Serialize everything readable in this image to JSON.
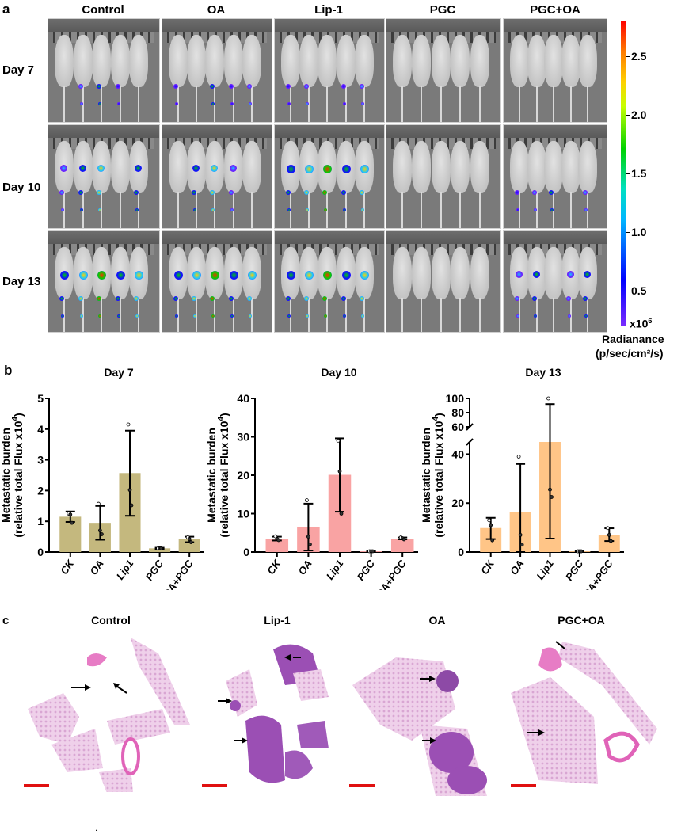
{
  "panel_a": {
    "letter": "a",
    "columns": [
      "Control",
      "OA",
      "Lip-1",
      "PGC",
      "PGC+OA"
    ],
    "rows": [
      "Day 7",
      "Day 10",
      "Day 13"
    ],
    "colorbar": {
      "ticks": [
        "2.5",
        "2.0",
        "1.5",
        "1.0",
        "0.5"
      ],
      "tick_values": [
        2.5,
        2.0,
        1.5,
        1.0,
        0.5
      ],
      "range": [
        0.2,
        2.8
      ],
      "exponent_label": "x10",
      "exponent_sup": "6",
      "unit_line1": "Radianance",
      "unit_line2": "(p/sec/cm²/s)",
      "colors": [
        "#7a2cff",
        "#0000ff",
        "#00b7ff",
        "#00d200",
        "#ffd000",
        "#ff7a00",
        "#ff0000"
      ]
    }
  },
  "panel_b": {
    "letter": "b"
  },
  "chart_data": [
    {
      "type": "bar",
      "title": "Day 7",
      "xlabel": "",
      "ylabel_line1": "Metastatic burden",
      "ylabel_line2": "(relative total Flux x10",
      "ylabel_sup": "4",
      "ylabel_close": ")",
      "categories": [
        "CK",
        "OA",
        "Lip1",
        "PGC",
        "OA+PGC"
      ],
      "values": [
        1.15,
        0.95,
        2.57,
        0.12,
        0.42
      ],
      "error_low": [
        0.98,
        0.4,
        1.18,
        0.1,
        0.32
      ],
      "error_high": [
        1.32,
        1.5,
        3.95,
        0.14,
        0.5
      ],
      "points": [
        [
          1.25,
          1.22,
          0.95
        ],
        [
          1.57,
          0.7,
          0.58
        ],
        [
          4.15,
          2.02,
          1.52
        ],
        [
          0.12,
          0.12,
          0.12
        ],
        [
          0.48,
          0.42,
          0.32
        ]
      ],
      "yticks": [
        0,
        1,
        2,
        3,
        4,
        5
      ],
      "ylim": [
        0,
        5
      ],
      "bar_color": "#c4b87e",
      "grid": false
    },
    {
      "type": "bar",
      "title": "Day 10",
      "xlabel": "",
      "ylabel_line1": "Metastatic burden",
      "ylabel_line2": "(relative total Flux x10",
      "ylabel_sup": "4",
      "ylabel_close": ")",
      "categories": [
        "CK",
        "OA",
        "Lip1",
        "PGC",
        "OA+PGC"
      ],
      "values": [
        3.5,
        6.6,
        20.1,
        0.2,
        3.5
      ],
      "error_low": [
        3.0,
        0.4,
        10.5,
        0.1,
        3.3
      ],
      "error_high": [
        4.0,
        12.6,
        29.6,
        0.3,
        3.8
      ],
      "points": [
        [
          4.1,
          3.4,
          3.1
        ],
        [
          13.5,
          4.0,
          2.0
        ],
        [
          29.0,
          21.0,
          10.0
        ],
        [
          0.2,
          0.2,
          0.2
        ],
        [
          3.8,
          3.6,
          3.3
        ]
      ],
      "yticks": [
        0,
        10,
        20,
        30,
        40
      ],
      "ylim": [
        0,
        40
      ],
      "bar_color": "#f9a3a3",
      "grid": false
    },
    {
      "type": "bar",
      "title": "Day 13",
      "xlabel": "",
      "ylabel_line1": "Metastatic burden",
      "ylabel_line2": "(relative total Flux x10",
      "ylabel_sup": "4",
      "ylabel_close": ")",
      "categories": [
        "CK",
        "OA",
        "Lip1",
        "PGC",
        "OA+PGC"
      ],
      "values": [
        9.8,
        16.3,
        45.0,
        0.3,
        7.0
      ],
      "error_low": [
        5.3,
        0.0,
        5.5,
        0.2,
        4.5
      ],
      "error_high": [
        14.0,
        36.0,
        92.0,
        0.4,
        9.7
      ],
      "points": [
        [
          13.0,
          11.0,
          4.8
        ],
        [
          39.0,
          7.0,
          3.0
        ],
        [
          100.0,
          25.5,
          22.5
        ],
        [
          0.3,
          0.3,
          0.3
        ],
        [
          9.8,
          7.0,
          4.5
        ]
      ],
      "yticks": [
        0,
        20,
        40,
        60,
        80,
        100
      ],
      "ylim": [
        0,
        100
      ],
      "axis_break": {
        "lower": [
          0,
          45
        ],
        "upper": [
          60,
          100
        ]
      },
      "bar_color": "#ffc587",
      "grid": false
    }
  ],
  "panel_c": {
    "letter": "c",
    "titles": [
      "Control",
      "Lip-1",
      "OA",
      "PGC+OA"
    ],
    "scale_bar_color": "#e01010",
    "footer_mark": "."
  }
}
